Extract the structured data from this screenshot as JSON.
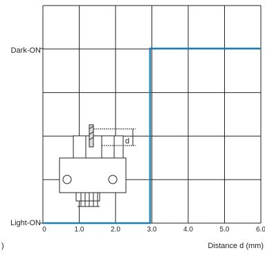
{
  "chart_data": {
    "type": "line",
    "title": "",
    "xlabel": "Distance d (mm)",
    "ylabel": "",
    "x_ticks": [
      "0",
      "1.0",
      "2.0",
      "3.0",
      "4.0",
      "5.0",
      "6.0"
    ],
    "xlim": [
      0,
      6
    ],
    "y_states": [
      "Light-ON",
      "Dark-ON"
    ],
    "grid": true,
    "series": [
      {
        "color": "#1a7fb5",
        "points": [
          [
            0,
            "Light-ON"
          ],
          [
            2.95,
            "Light-ON"
          ],
          [
            2.95,
            "Dark-ON"
          ],
          [
            6.0,
            "Dark-ON"
          ]
        ]
      }
    ],
    "inset": {
      "dimension_label": "d"
    },
    "stray_mark": ")"
  }
}
